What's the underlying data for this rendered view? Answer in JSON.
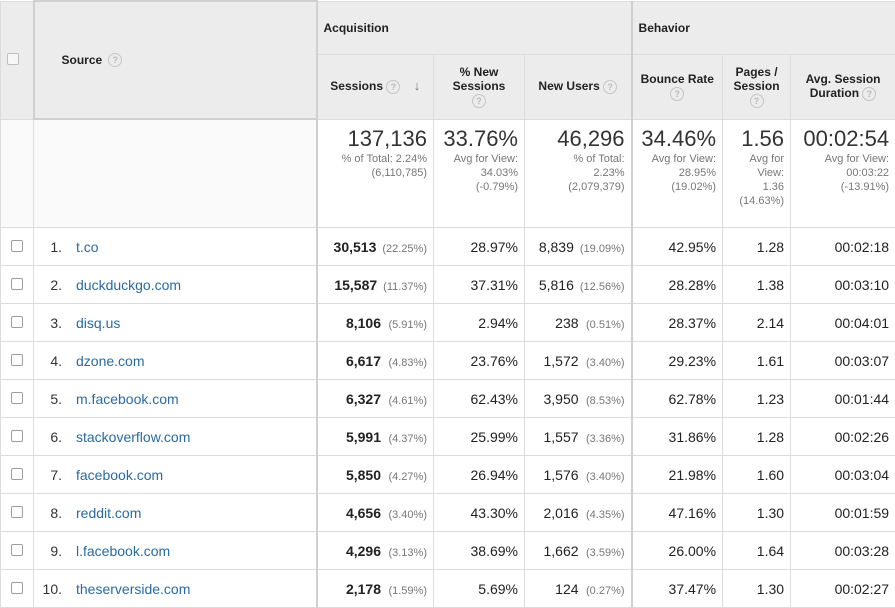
{
  "header": {
    "source_label": "Source",
    "groups": {
      "acquisition": "Acquisition",
      "behavior": "Behavior"
    },
    "columns": {
      "sessions": "Sessions",
      "new_sessions_l1": "% New",
      "new_sessions_l2": "Sessions",
      "new_users": "New Users",
      "bounce_rate": "Bounce Rate",
      "pages_l1": "Pages /",
      "pages_l2": "Session",
      "duration_l1": "Avg. Session",
      "duration_l2": "Duration"
    }
  },
  "totals": {
    "sessions": {
      "value": "137,136",
      "l1": "% of Total: 2.24%",
      "l2": "(6,110,785)"
    },
    "new_sessions": {
      "value": "33.76%",
      "l1": "Avg for View:",
      "l2": "34.03%",
      "l3": "(-0.79%)"
    },
    "new_users": {
      "value": "46,296",
      "l1": "% of Total:",
      "l2": "2.23%",
      "l3": "(2,079,379)"
    },
    "bounce_rate": {
      "value": "34.46%",
      "l1": "Avg for View:",
      "l2": "28.95%",
      "l3": "(19.02%)"
    },
    "pages": {
      "value": "1.56",
      "l1": "Avg for",
      "l2": "View:",
      "l3": "1.36",
      "l4": "(14.63%)"
    },
    "duration": {
      "value": "00:02:54",
      "l1": "Avg for View:",
      "l2": "00:03:22",
      "l3": "(-13.91%)"
    }
  },
  "rows": [
    {
      "idx": "1.",
      "source": "t.co",
      "sessions": "30,513",
      "sessions_pct": "(22.25%)",
      "new_sessions": "28.97%",
      "new_users": "8,839",
      "new_users_pct": "(19.09%)",
      "bounce": "42.95%",
      "pages": "1.28",
      "duration": "00:02:18"
    },
    {
      "idx": "2.",
      "source": "duckduckgo.com",
      "sessions": "15,587",
      "sessions_pct": "(11.37%)",
      "new_sessions": "37.31%",
      "new_users": "5,816",
      "new_users_pct": "(12.56%)",
      "bounce": "28.28%",
      "pages": "1.38",
      "duration": "00:03:10"
    },
    {
      "idx": "3.",
      "source": "disq.us",
      "sessions": "8,106",
      "sessions_pct": "(5.91%)",
      "new_sessions": "2.94%",
      "new_users": "238",
      "new_users_pct": "(0.51%)",
      "bounce": "28.37%",
      "pages": "2.14",
      "duration": "00:04:01"
    },
    {
      "idx": "4.",
      "source": "dzone.com",
      "sessions": "6,617",
      "sessions_pct": "(4.83%)",
      "new_sessions": "23.76%",
      "new_users": "1,572",
      "new_users_pct": "(3.40%)",
      "bounce": "29.23%",
      "pages": "1.61",
      "duration": "00:03:07"
    },
    {
      "idx": "5.",
      "source": "m.facebook.com",
      "sessions": "6,327",
      "sessions_pct": "(4.61%)",
      "new_sessions": "62.43%",
      "new_users": "3,950",
      "new_users_pct": "(8.53%)",
      "bounce": "62.78%",
      "pages": "1.23",
      "duration": "00:01:44"
    },
    {
      "idx": "6.",
      "source": "stackoverflow.com",
      "sessions": "5,991",
      "sessions_pct": "(4.37%)",
      "new_sessions": "25.99%",
      "new_users": "1,557",
      "new_users_pct": "(3.36%)",
      "bounce": "31.86%",
      "pages": "1.28",
      "duration": "00:02:26"
    },
    {
      "idx": "7.",
      "source": "facebook.com",
      "sessions": "5,850",
      "sessions_pct": "(4.27%)",
      "new_sessions": "26.94%",
      "new_users": "1,576",
      "new_users_pct": "(3.40%)",
      "bounce": "21.98%",
      "pages": "1.60",
      "duration": "00:03:04"
    },
    {
      "idx": "8.",
      "source": "reddit.com",
      "sessions": "4,656",
      "sessions_pct": "(3.40%)",
      "new_sessions": "43.30%",
      "new_users": "2,016",
      "new_users_pct": "(4.35%)",
      "bounce": "47.16%",
      "pages": "1.30",
      "duration": "00:01:59"
    },
    {
      "idx": "9.",
      "source": "l.facebook.com",
      "sessions": "4,296",
      "sessions_pct": "(3.13%)",
      "new_sessions": "38.69%",
      "new_users": "1,662",
      "new_users_pct": "(3.59%)",
      "bounce": "26.00%",
      "pages": "1.64",
      "duration": "00:03:28"
    },
    {
      "idx": "10.",
      "source": "theserverside.com",
      "sessions": "2,178",
      "sessions_pct": "(1.59%)",
      "new_sessions": "5.69%",
      "new_users": "124",
      "new_users_pct": "(0.27%)",
      "bounce": "37.47%",
      "pages": "1.30",
      "duration": "00:02:27"
    }
  ],
  "icons": {
    "help": "help-icon",
    "sort": "sort-descending-icon",
    "checkbox": "checkbox-icon"
  },
  "colors": {
    "link": "#2b6aa1",
    "header_bg": "#ececec"
  }
}
